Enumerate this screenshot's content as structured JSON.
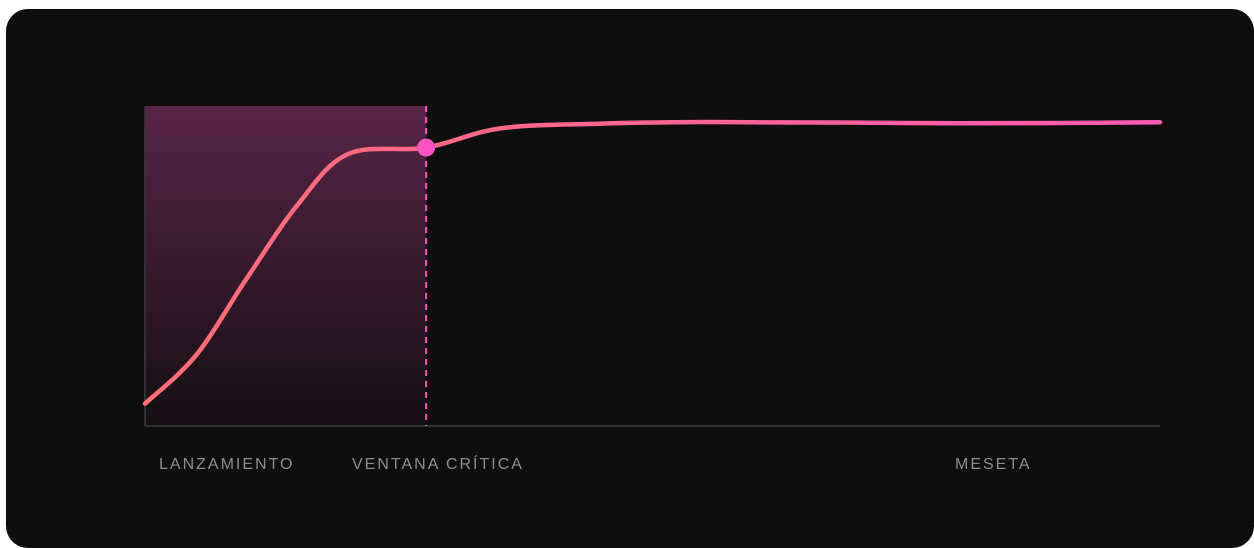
{
  "chart_data": {
    "type": "line",
    "title": "",
    "xlabel": "",
    "ylabel": "",
    "xlim": [
      0,
      100
    ],
    "ylim": [
      0,
      100
    ],
    "grid": false,
    "x": [
      0,
      5,
      10,
      15,
      20,
      27.7,
      35,
      45,
      55,
      60,
      70,
      80,
      90,
      100
    ],
    "series": [
      {
        "values": [
          7,
          22,
          46,
          69,
          85,
          87,
          93,
          94.5,
          95,
          94.9,
          94.8,
          94.6,
          94.7,
          94.9
        ]
      }
    ],
    "highlight_region": {
      "x_start": 0,
      "x_end": 27.7
    },
    "marker": {
      "x": 27.7,
      "y": 87
    },
    "annotations": [
      {
        "text": "LANZAMIENTO",
        "x": 0
      },
      {
        "text": "VENTANA CRÍTICA",
        "x": 27.7
      },
      {
        "text": "MESETA",
        "x": 87
      }
    ],
    "colors": {
      "line_start": "#ff6f73",
      "line_end": "#ff5ab4",
      "marker": "#ff54c0",
      "region_top": "#582447",
      "region_bottom": "#150f13",
      "axis": "#3a3a3a",
      "label": "#8d8d8d",
      "background": "#0e0e0e"
    }
  }
}
